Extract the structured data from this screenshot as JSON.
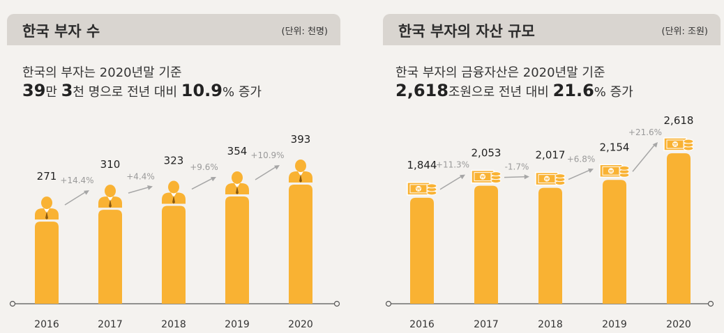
{
  "colors": {
    "bar": "#f9b233",
    "axis": "#555555",
    "arrow": "#a6a6a6",
    "growth_text": "#9a9a9a",
    "header_bg": "#d9d5d0"
  },
  "left": {
    "title": "한국 부자 수",
    "unit": "(단위: 천명)",
    "summary_line1": "한국의 부자는 2020년말 기준",
    "summary_v1": "39",
    "summary_t1": "만 ",
    "summary_v2": "3",
    "summary_t2": "천 명으로 전년 대비 ",
    "summary_v3": "10.9",
    "summary_t3": "% 증가"
  },
  "right": {
    "title": "한국 부자의 자산 규모",
    "unit": "(단위: 조원)",
    "summary_line1": "한국 부자의 금융자산은 2020년말 기준",
    "summary_v1": "2,618",
    "summary_t1": "조원으로 전년 대비 ",
    "summary_v2": "21.6",
    "summary_t2": "% 증가"
  },
  "chart_data": [
    {
      "type": "bar",
      "title": "한국 부자 수",
      "unit": "천명",
      "icon": "person-icon",
      "categories": [
        "2016",
        "2017",
        "2018",
        "2019",
        "2020"
      ],
      "values": [
        271,
        310,
        323,
        354,
        393
      ],
      "value_labels": [
        "271",
        "310",
        "323",
        "354",
        "393"
      ],
      "growth_labels": [
        "+14.4%",
        "+4.4%",
        "+9.6%",
        "+10.9%"
      ],
      "ylim": [
        0,
        420
      ]
    },
    {
      "type": "bar",
      "title": "한국 부자의 자산 규모",
      "unit": "조원",
      "icon": "money-icon",
      "categories": [
        "2016",
        "2017",
        "2018",
        "2019",
        "2020"
      ],
      "values": [
        1844,
        2053,
        2017,
        2154,
        2618
      ],
      "value_labels": [
        "1,844",
        "2,053",
        "2,017",
        "2,154",
        "2,618"
      ],
      "growth_labels": [
        "+11.3%",
        "-1.7%",
        "+6.8%",
        "+21.6%"
      ],
      "ylim": [
        0,
        2800
      ]
    }
  ]
}
